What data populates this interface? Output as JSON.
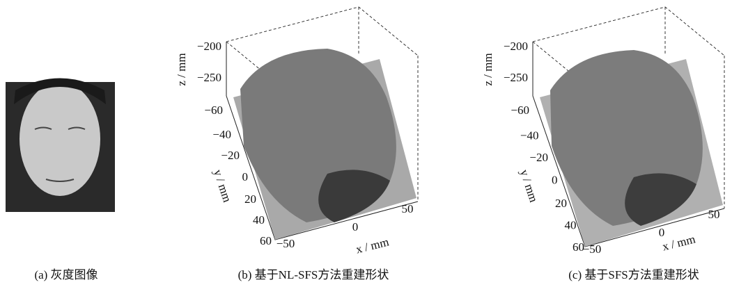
{
  "panels": [
    {
      "caption": "(a) 灰度图像"
    },
    {
      "caption": "(b) 基于NL-SFS方法重建形状",
      "z_label": "z / mm",
      "z_ticks": [
        "−200",
        "−250"
      ],
      "y_label": "y / mm",
      "y_ticks": [
        "−60",
        "−40",
        "−20",
        "0",
        "20",
        "40",
        "60"
      ],
      "x_label": "x / mm",
      "x_ticks": [
        "−50",
        "0",
        "50"
      ]
    },
    {
      "caption": "(c) 基于SFS方法重建形状",
      "z_label": "z / mm",
      "z_ticks": [
        "−200",
        "−250"
      ],
      "y_label": "y / mm",
      "y_ticks": [
        "−60",
        "−40",
        "−20",
        "0",
        "20",
        "40",
        "60"
      ],
      "x_label": "x / mm",
      "x_ticks": [
        "−50",
        "0",
        "50"
      ]
    }
  ]
}
